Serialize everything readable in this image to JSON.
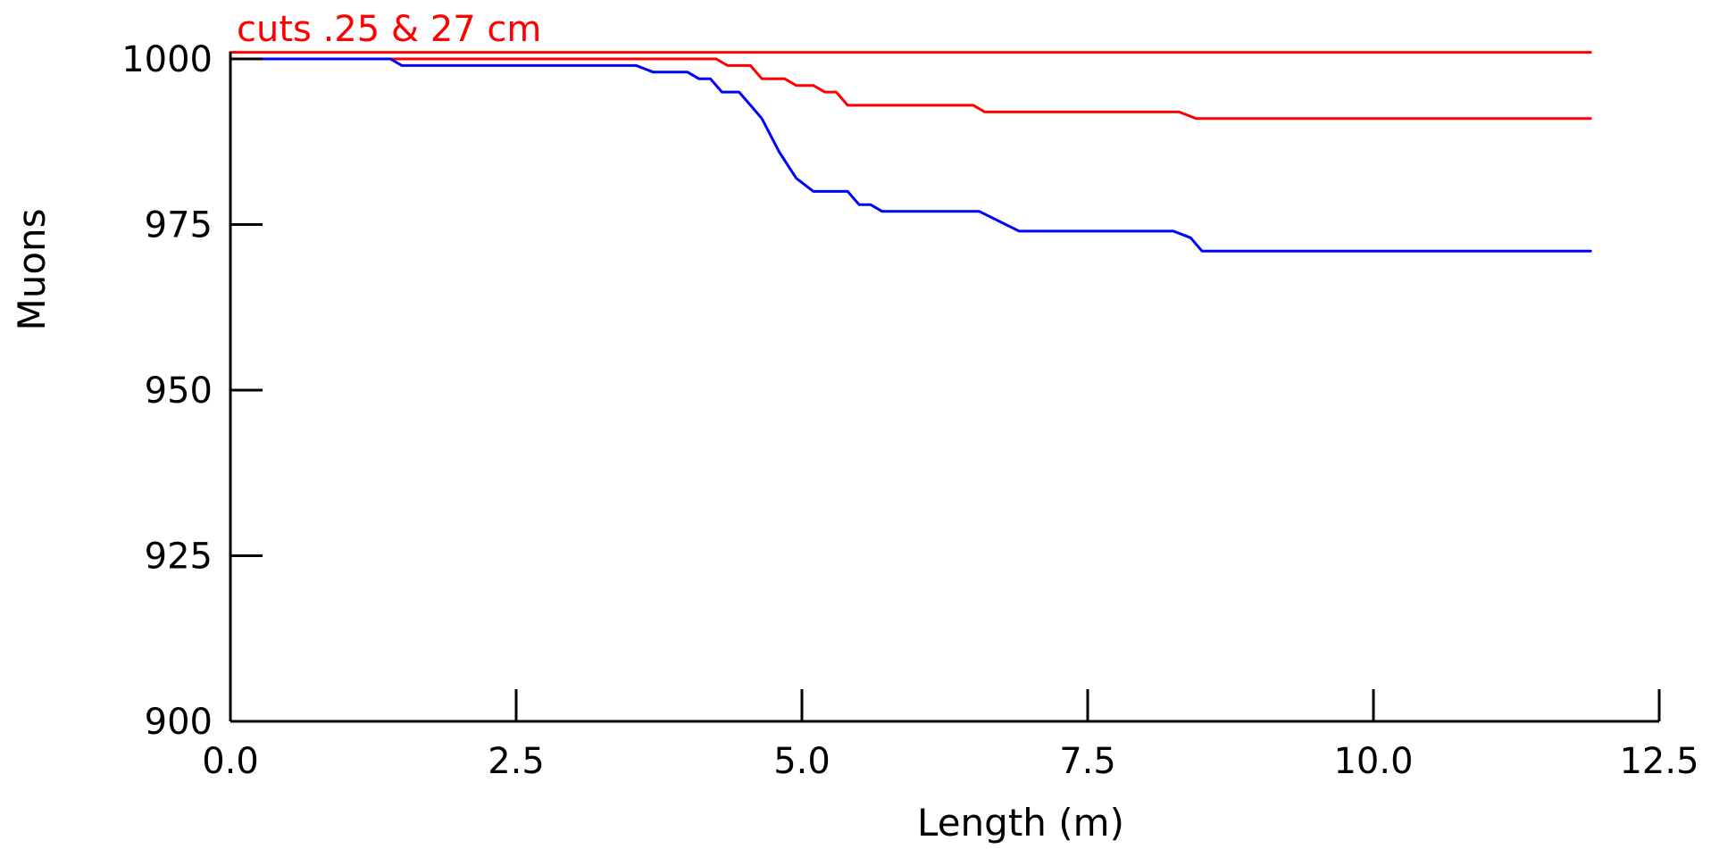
{
  "chart_data": {
    "type": "line",
    "title": "",
    "xlabel": "Length (m)",
    "ylabel": "Muons",
    "xlim": [
      0.0,
      12.5
    ],
    "ylim": [
      900,
      1000
    ],
    "xticks": [
      "0.0",
      "2.5",
      "5.0",
      "7.5",
      "10.0",
      "12.5"
    ],
    "yticks": [
      "900",
      "925",
      "950",
      "975",
      "1000"
    ],
    "annotation": {
      "text": "cuts .25 & 27 cm",
      "color": "#ff0000"
    },
    "grid": false,
    "legend": "none",
    "series": [
      {
        "color": "#ff0000",
        "points": [
          [
            0.0,
            1001
          ],
          [
            11.9,
            1001
          ]
        ]
      },
      {
        "color": "#ff0000",
        "points": [
          [
            0.0,
            1000
          ],
          [
            4.25,
            1000
          ],
          [
            4.35,
            999
          ],
          [
            4.55,
            999
          ],
          [
            4.65,
            997
          ],
          [
            4.85,
            997
          ],
          [
            4.95,
            996
          ],
          [
            5.1,
            996
          ],
          [
            5.2,
            995
          ],
          [
            5.3,
            995
          ],
          [
            5.4,
            993
          ],
          [
            6.5,
            993
          ],
          [
            6.6,
            992
          ],
          [
            8.3,
            992
          ],
          [
            8.45,
            991
          ],
          [
            11.9,
            991
          ]
        ]
      },
      {
        "color": "#0000ff",
        "points": [
          [
            0.0,
            1000
          ],
          [
            1.4,
            1000
          ],
          [
            1.5,
            999
          ],
          [
            3.55,
            999
          ],
          [
            3.7,
            998
          ],
          [
            4.0,
            998
          ],
          [
            4.1,
            997
          ],
          [
            4.2,
            997
          ],
          [
            4.3,
            995
          ],
          [
            4.45,
            995
          ],
          [
            4.55,
            993
          ],
          [
            4.65,
            991
          ],
          [
            4.8,
            986
          ],
          [
            4.95,
            982
          ],
          [
            5.1,
            980
          ],
          [
            5.4,
            980
          ],
          [
            5.5,
            978
          ],
          [
            5.6,
            978
          ],
          [
            5.7,
            977
          ],
          [
            6.55,
            977
          ],
          [
            6.9,
            974
          ],
          [
            8.25,
            974
          ],
          [
            8.4,
            973
          ],
          [
            8.5,
            971
          ],
          [
            11.9,
            971
          ]
        ]
      }
    ]
  }
}
